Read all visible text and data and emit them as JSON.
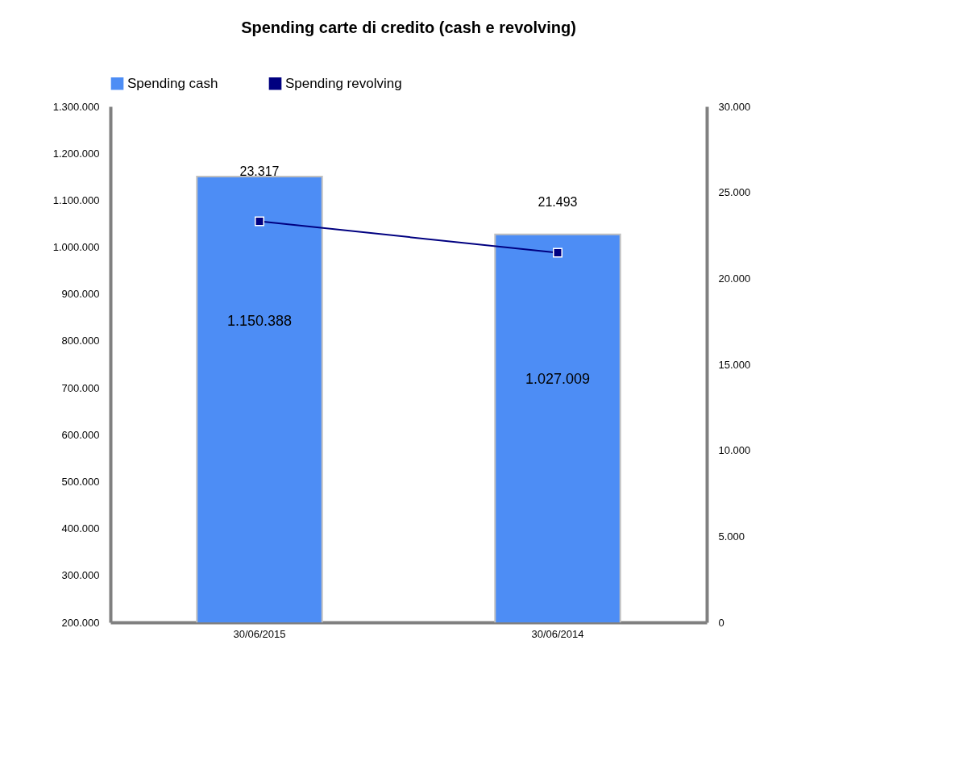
{
  "chart_data": {
    "type": "bar",
    "title": "Spending  carte di credito (cash e revolving)",
    "categories": [
      "30/06/2015",
      "30/06/2014"
    ],
    "series": [
      {
        "name": "Spending cash",
        "color": "#4d8df5",
        "values": [
          1150388,
          1027009
        ],
        "value_labels": [
          "1.150.388",
          "1.027.009"
        ]
      },
      {
        "name": "Spending revolving",
        "type": "line",
        "axis": "y2",
        "color": "#000080",
        "marker": "square",
        "values": [
          23317,
          21493
        ],
        "value_labels": [
          "23.317",
          "21.493"
        ]
      }
    ],
    "ylim": [
      200000,
      1300000
    ],
    "yticks": [
      {
        "value": 200000,
        "label": "200.000"
      },
      {
        "value": 300000,
        "label": "300.000"
      },
      {
        "value": 400000,
        "label": "400.000"
      },
      {
        "value": 500000,
        "label": "500.000"
      },
      {
        "value": 600000,
        "label": "600.000"
      },
      {
        "value": 700000,
        "label": "700.000"
      },
      {
        "value": 800000,
        "label": "800.000"
      },
      {
        "value": 900000,
        "label": "900.000"
      },
      {
        "value": 1000000,
        "label": "1.000.000"
      },
      {
        "value": 1100000,
        "label": "1.100.000"
      },
      {
        "value": 1200000,
        "label": "1.200.000"
      },
      {
        "value": 1300000,
        "label": "1.300.000"
      }
    ],
    "y2lim": [
      0,
      30000
    ],
    "y2ticks": [
      0,
      {
        "value": 5000,
        "label": "5.000"
      },
      {
        "value": 10000,
        "label": "10.000"
      },
      {
        "value": 15000,
        "label": "15.000"
      },
      {
        "value": 20000,
        "label": "20.000"
      },
      {
        "value": 25000,
        "label": "25.000"
      },
      {
        "value": 30000,
        "label": "30.000"
      }
    ],
    "legend": "top"
  }
}
